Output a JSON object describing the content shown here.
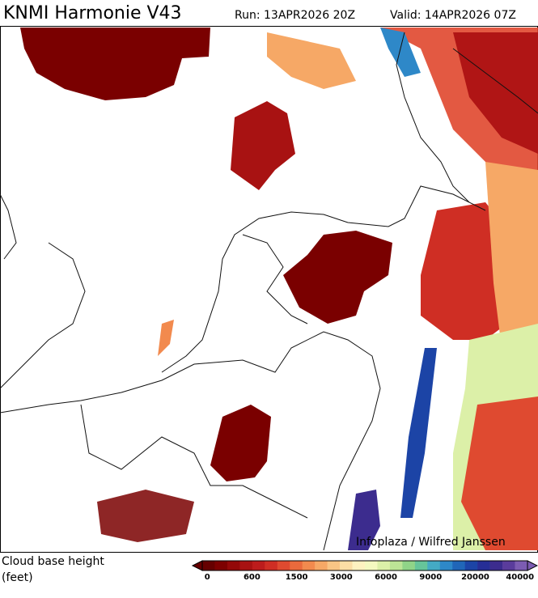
{
  "header": {
    "title": "KNMI Harmonie V43",
    "run": "Run: 13APR2026 20Z",
    "valid": "Valid: 14APR2026 07Z"
  },
  "map": {
    "credit": "Infoplaza / Wilfred Janssen"
  },
  "legend": {
    "title": "Cloud base height",
    "units": "(feet)",
    "ticks": [
      0,
      600,
      1500,
      3000,
      6000,
      9000,
      20000,
      40000
    ],
    "colors": [
      "#660000",
      "#7d0000",
      "#940808",
      "#a81212",
      "#bc1c1c",
      "#cf2e24",
      "#df4a30",
      "#ea6a3c",
      "#f28a4e",
      "#f6a866",
      "#f9c585",
      "#fcdea5",
      "#fef2c0",
      "#f4f9c0",
      "#dcf0a8",
      "#bce496",
      "#90d488",
      "#66c49a",
      "#44aac4",
      "#2e88c8",
      "#2066b8",
      "#1c44a6",
      "#262e96",
      "#3c2c8e",
      "#5a3c9c",
      "#7c5cb2"
    ]
  }
}
